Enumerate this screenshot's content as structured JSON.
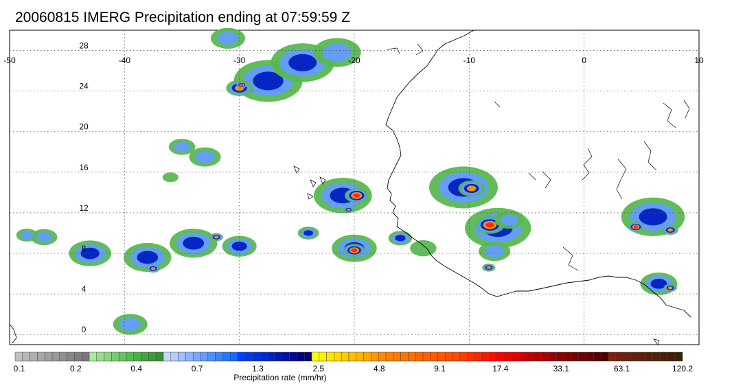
{
  "title": "20060815 IMERG Precipitation ending at 07:59:59 Z",
  "map": {
    "lon_range": [
      -50,
      10
    ],
    "lat_range": [
      -1,
      30
    ],
    "lon_ticks": [
      "-50",
      "-40",
      "-30",
      "-20",
      "-10",
      "0",
      "10"
    ],
    "lat_ticks": [
      "0",
      "4",
      "8",
      "12",
      "16",
      "20",
      "24",
      "28"
    ],
    "gridline_style": "dotted",
    "coastline_color": "#000000"
  },
  "colorbar": {
    "label": "Precipitation rate (mm/hr)",
    "tick_labels": [
      "0.1",
      "0.2",
      "0.4",
      "0.7",
      "1.3",
      "2.5",
      "4.8",
      "9.1",
      "17.4",
      "33.1",
      "63.1",
      "120.2"
    ],
    "colors": [
      "#c0c0c0",
      "#b8b8b8",
      "#b0b0b0",
      "#a8a8a8",
      "#a0a0a0",
      "#989898",
      "#909090",
      "#888888",
      "#808080",
      "#787878",
      "#a8eaa0",
      "#98e090",
      "#88d680",
      "#78cc70",
      "#68c260",
      "#58b850",
      "#4eae48",
      "#46a440",
      "#3e9a38",
      "#368f30",
      "#c8d8ff",
      "#b4ccff",
      "#a0c0ff",
      "#8cb4ff",
      "#78a8ff",
      "#649cff",
      "#5090ff",
      "#3c84ff",
      "#2878ff",
      "#146cff",
      "#0040ff",
      "#0038f0",
      "#0030e0",
      "#0028d0",
      "#0020c0",
      "#0018b0",
      "#0010a0",
      "#000890",
      "#000080",
      "#000070",
      "#ffff00",
      "#fff200",
      "#ffe600",
      "#ffd900",
      "#ffcc00",
      "#ffbf00",
      "#ffb300",
      "#ffa600",
      "#ff9900",
      "#ff8c00",
      "#ff8000",
      "#ff7a00",
      "#ff7400",
      "#ff6e00",
      "#ff6800",
      "#ff6200",
      "#ff5c00",
      "#ff5600",
      "#ff5000",
      "#ff4a00",
      "#ff3c00",
      "#ff3000",
      "#ff2400",
      "#ff1800",
      "#ff0c00",
      "#ff0000",
      "#f00000",
      "#e00000",
      "#d00000",
      "#c00000",
      "#b40000",
      "#a80000",
      "#9c0000",
      "#900000",
      "#840000",
      "#780000",
      "#6c0000",
      "#600000",
      "#540000",
      "#480000",
      "#802010",
      "#78200f",
      "#70200e",
      "#68200d",
      "#60200c",
      "#58200b",
      "#50200a",
      "#482009",
      "#402008",
      "#381f08"
    ]
  },
  "precip_cells": [
    {
      "lon": -31.0,
      "lat": 29.2,
      "r": 1.3,
      "level": 2
    },
    {
      "lon": -27.5,
      "lat": 25.0,
      "r": 2.6,
      "level": 3
    },
    {
      "lon": -24.5,
      "lat": 26.8,
      "r": 2.4,
      "level": 3
    },
    {
      "lon": -21.5,
      "lat": 27.8,
      "r": 1.8,
      "level": 2
    },
    {
      "lon": -30.0,
      "lat": 24.3,
      "r": 1.0,
      "level": 4
    },
    {
      "lon": -29.8,
      "lat": 24.6,
      "r": 0.4,
      "level": 5
    },
    {
      "lon": -35.0,
      "lat": 18.5,
      "r": 1.0,
      "level": 2
    },
    {
      "lon": -33.0,
      "lat": 17.5,
      "r": 1.2,
      "level": 2
    },
    {
      "lon": -36.0,
      "lat": 15.5,
      "r": 0.6,
      "level": 1
    },
    {
      "lon": -21.0,
      "lat": 13.7,
      "r": 2.2,
      "level": 3
    },
    {
      "lon": -19.8,
      "lat": 13.7,
      "r": 0.9,
      "level": 5
    },
    {
      "lon": -20.5,
      "lat": 12.3,
      "r": 0.4,
      "level": 4
    },
    {
      "lon": -24.0,
      "lat": 10.0,
      "r": 0.8,
      "level": 3
    },
    {
      "lon": -20.0,
      "lat": 8.5,
      "r": 1.7,
      "level": 3
    },
    {
      "lon": -20.0,
      "lat": 8.3,
      "r": 0.8,
      "level": 5
    },
    {
      "lon": -16.0,
      "lat": 9.5,
      "r": 0.9,
      "level": 3
    },
    {
      "lon": -14.0,
      "lat": 8.5,
      "r": 1.0,
      "level": 1
    },
    {
      "lon": -10.5,
      "lat": 14.5,
      "r": 2.6,
      "level": 3
    },
    {
      "lon": -9.8,
      "lat": 14.4,
      "r": 1.0,
      "level": 4
    },
    {
      "lon": -7.5,
      "lat": 10.5,
      "r": 2.5,
      "level": 3
    },
    {
      "lon": -8.2,
      "lat": 10.8,
      "r": 1.1,
      "level": 5
    },
    {
      "lon": -7.8,
      "lat": 8.2,
      "r": 1.2,
      "level": 2
    },
    {
      "lon": -8.3,
      "lat": 6.6,
      "r": 0.5,
      "level": 4
    },
    {
      "lon": -6.5,
      "lat": 11.3,
      "r": 1.1,
      "level": 2
    },
    {
      "lon": 6.0,
      "lat": 11.6,
      "r": 2.4,
      "level": 3
    },
    {
      "lon": 4.5,
      "lat": 10.6,
      "r": 0.6,
      "level": 5
    },
    {
      "lon": 7.5,
      "lat": 10.3,
      "r": 0.6,
      "level": 4
    },
    {
      "lon": 6.5,
      "lat": 5.0,
      "r": 1.4,
      "level": 3
    },
    {
      "lon": 7.5,
      "lat": 4.6,
      "r": 0.5,
      "level": 4
    },
    {
      "lon": -47.0,
      "lat": 9.6,
      "r": 1.0,
      "level": 2
    },
    {
      "lon": -43.0,
      "lat": 8.0,
      "r": 1.6,
      "level": 3
    },
    {
      "lon": -38.0,
      "lat": 7.6,
      "r": 1.8,
      "level": 3
    },
    {
      "lon": -37.5,
      "lat": 6.5,
      "r": 0.5,
      "level": 4
    },
    {
      "lon": -34.0,
      "lat": 9.0,
      "r": 1.8,
      "level": 3
    },
    {
      "lon": -32.0,
      "lat": 9.6,
      "r": 0.5,
      "level": 4
    },
    {
      "lon": -30.0,
      "lat": 8.7,
      "r": 1.3,
      "level": 3
    },
    {
      "lon": -39.5,
      "lat": 1.0,
      "r": 1.3,
      "level": 2
    },
    {
      "lon": -48.5,
      "lat": 9.8,
      "r": 0.8,
      "level": 2
    }
  ]
}
